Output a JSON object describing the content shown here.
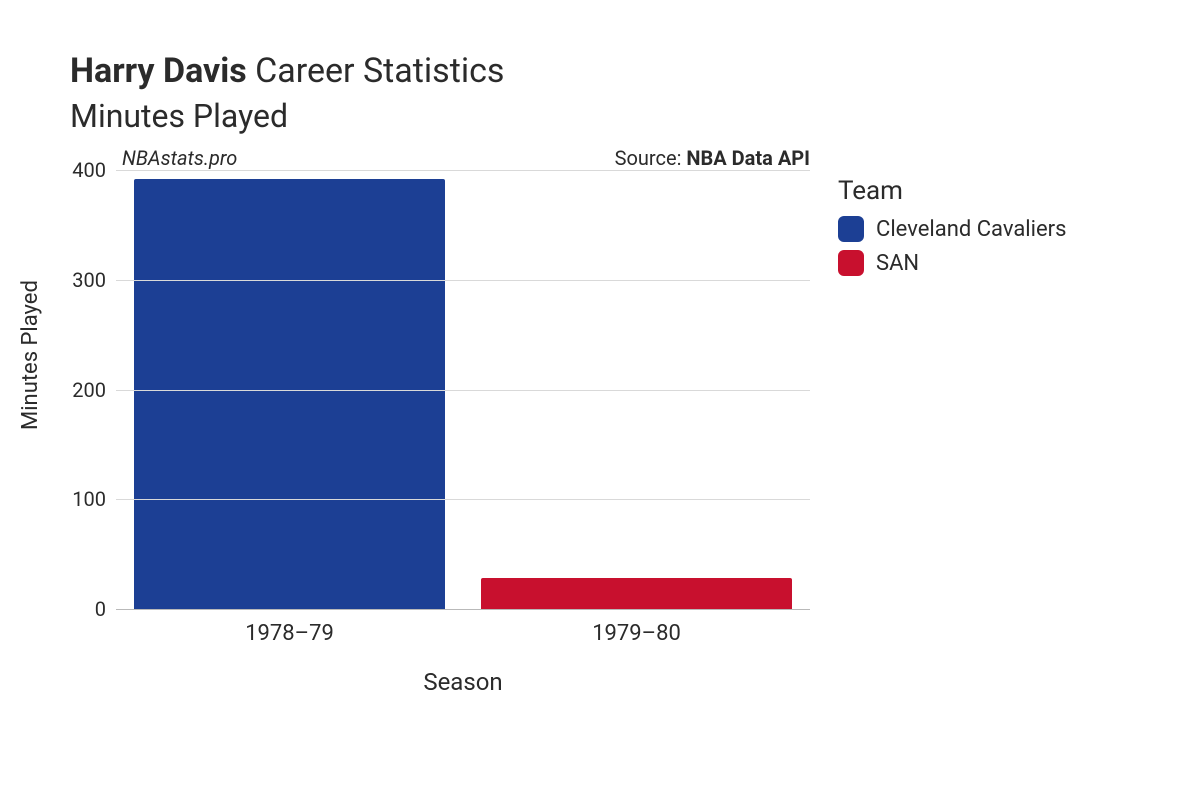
{
  "title": {
    "bold": "Harry Davis",
    "rest": " Career Statistics"
  },
  "subtitle": "Minutes Played",
  "watermark": "NBAstats.pro",
  "source": {
    "label": "Source: ",
    "name": "NBA Data API"
  },
  "chart": {
    "type": "bar",
    "x_axis_title": "Season",
    "y_axis_title": "Minutes Played",
    "ylim": [
      0,
      400
    ],
    "ytick_step": 100,
    "yticks": [
      0,
      100,
      200,
      300,
      400
    ],
    "categories": [
      "1978–79",
      "1979–80"
    ],
    "values": [
      392,
      28
    ],
    "bar_colors": [
      "#1c3f94",
      "#c8102e"
    ],
    "background_color": "#ffffff",
    "grid_color": "#d9d9d9",
    "axis_line_color": "#b9b9b9",
    "label_fontsize": 22,
    "tick_fontsize": 20,
    "title_fontsize": 34,
    "bar_width": 0.94
  },
  "legend": {
    "title": "Team",
    "items": [
      {
        "label": "Cleveland Cavaliers",
        "color": "#1c3f94"
      },
      {
        "label": "SAN",
        "color": "#c8102e"
      }
    ]
  }
}
